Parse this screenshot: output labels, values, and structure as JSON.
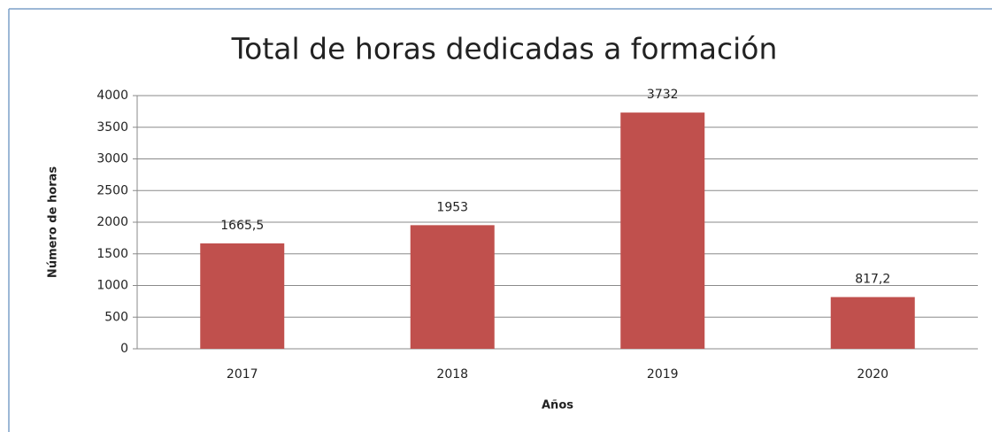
{
  "chart_data": {
    "type": "bar",
    "title": "Total de horas dedicadas a formación",
    "x_label": "Años",
    "y_label": "Número de horas",
    "categories": [
      "2017",
      "2018",
      "2019",
      "2020"
    ],
    "values": [
      1665.5,
      1953,
      3732,
      817.2
    ],
    "value_labels": [
      "1665,5",
      "1953",
      "3732",
      "817,2"
    ],
    "color": "#c0504d",
    "ylim": [
      0,
      4000
    ],
    "yticks": [
      0,
      500,
      1000,
      1500,
      2000,
      2500,
      3000,
      3500,
      4000
    ],
    "grid": true
  }
}
